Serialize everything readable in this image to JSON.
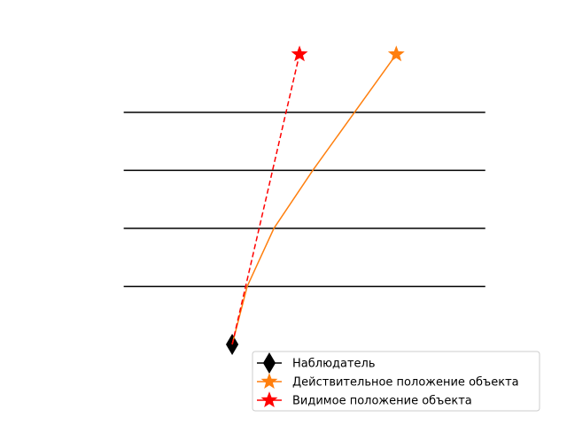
{
  "chart_data": {
    "type": "line",
    "title": "",
    "xlabel": "",
    "ylabel": "",
    "axes_visible": false,
    "grid": false,
    "xlim": [
      -3.45,
      4.45
    ],
    "ylim": [
      -0.58,
      5.05
    ],
    "layers": [
      {
        "name": "",
        "x": [
          -2.5,
          4.0
        ],
        "y": [
          1.0,
          1.0
        ],
        "color": "#000000"
      },
      {
        "name": "",
        "x": [
          -2.5,
          4.0
        ],
        "y": [
          2.0,
          2.0
        ],
        "color": "#000000"
      },
      {
        "name": "",
        "x": [
          -2.5,
          4.0
        ],
        "y": [
          3.0,
          3.0
        ],
        "color": "#000000"
      },
      {
        "name": "",
        "x": [
          -2.5,
          4.0
        ],
        "y": [
          4.0,
          4.0
        ],
        "color": "#000000"
      }
    ],
    "series": [
      {
        "name": "Наблюдатель",
        "marker": "diamond",
        "color": "#000000",
        "x": [
          -0.55
        ],
        "y": [
          0.0
        ]
      },
      {
        "name": "Действительное положение объекта",
        "marker": "star",
        "color": "#ff7f0e",
        "line": "solid",
        "x": [
          -0.55,
          -0.28,
          0.2,
          0.9,
          1.65,
          2.4
        ],
        "y": [
          0.0,
          1.0,
          2.0,
          3.0,
          4.0,
          5.0
        ]
      },
      {
        "name": "Видимое положение объекта",
        "marker": "star",
        "color": "#ff0000",
        "line": "dashed",
        "x": [
          -0.55,
          0.66
        ],
        "y": [
          0.0,
          5.0
        ]
      }
    ],
    "legend_position": "bottom-right"
  }
}
